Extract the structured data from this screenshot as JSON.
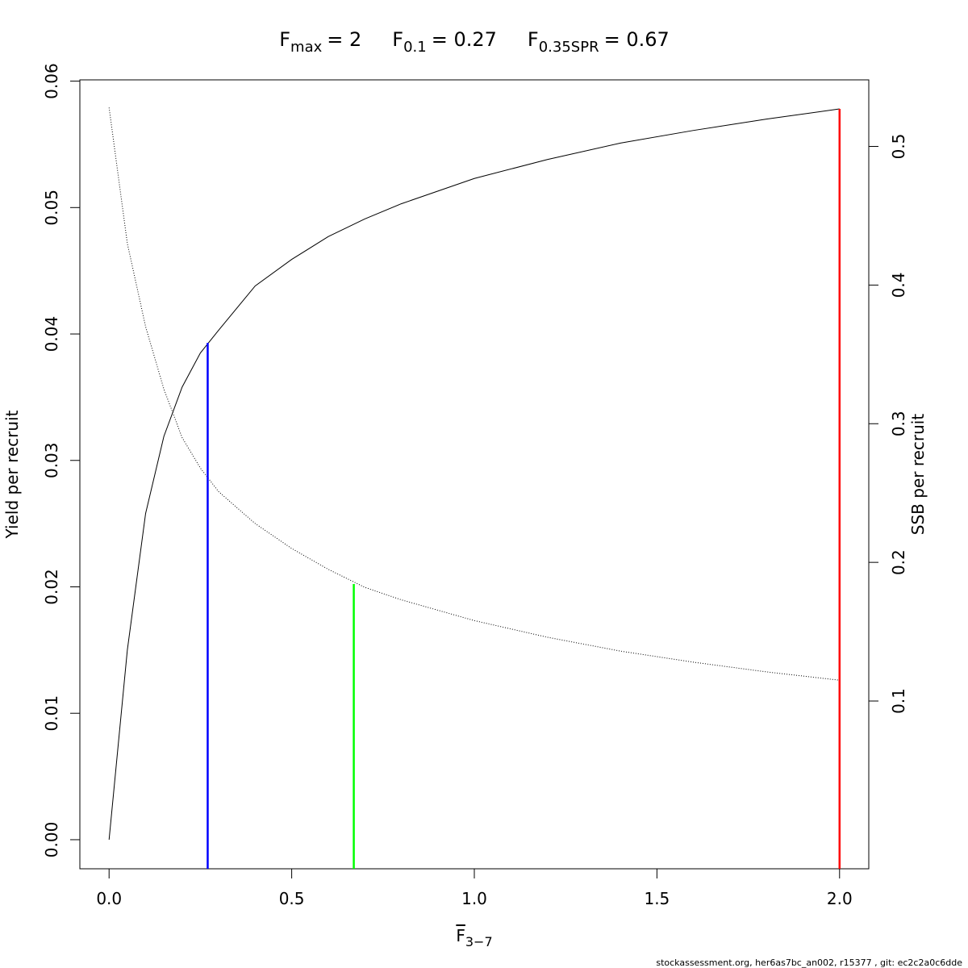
{
  "chart_data": {
    "type": "line",
    "reference_lines": [
      {
        "name": "F",
        "subscript": "max",
        "label": "= 2",
        "x": 2,
        "y": 0.0578,
        "axis": "y",
        "color": "#ff0000"
      },
      {
        "name": "F",
        "subscript": "0.1",
        "label": "= 0.27",
        "x": 0.27,
        "y": 0.0393,
        "axis": "y",
        "color": "#0000ff"
      },
      {
        "name": "F",
        "subscript": "0.35SPR",
        "label": "= 0.67",
        "x": 0.67,
        "y": 0.1844,
        "axis": "y2",
        "color": "#00ff00"
      }
    ],
    "xlabel": "F",
    "xlabel_subscript": "3−7",
    "ylabel": "Yield per recruit",
    "y2label": "SSB per recruit",
    "footnote": "stockassessment.org, her6as7bc_an002, r15377 , git: ec2c2a0c6dde",
    "x": [
      0,
      0.05,
      0.1,
      0.15,
      0.2,
      0.25,
      0.3,
      0.4,
      0.5,
      0.6,
      0.7,
      0.8,
      1.0,
      1.2,
      1.4,
      1.6,
      1.8,
      2.0
    ],
    "series": [
      {
        "color": "#000000",
        "linestyle": "solid",
        "axis": "y",
        "values": [
          0,
          0.015,
          0.0258,
          0.0319,
          0.0358,
          0.0385,
          0.0403,
          0.0438,
          0.0459,
          0.0477,
          0.0491,
          0.0503,
          0.0523,
          0.0538,
          0.0551,
          0.0561,
          0.057,
          0.0578
        ]
      },
      {
        "color": "#000000",
        "linestyle": "dotted",
        "axis": "y2",
        "values": [
          0.528,
          0.43,
          0.37,
          0.325,
          0.29,
          0.268,
          0.251,
          0.228,
          0.21,
          0.195,
          0.182,
          0.173,
          0.158,
          0.146,
          0.136,
          0.128,
          0.121,
          0.115
        ]
      }
    ],
    "xlim": [
      -0.08,
      2.08
    ],
    "xticks": [
      {
        "value": 0,
        "label": "0.0"
      },
      {
        "value": 0.5,
        "label": "0.5"
      },
      {
        "value": 1,
        "label": "1.0"
      },
      {
        "value": 1.5,
        "label": "1.5"
      },
      {
        "value": 2,
        "label": "2.0"
      }
    ],
    "ylim": [
      -0.0023,
      0.0601
    ],
    "yticks": [
      {
        "value": 0,
        "label": "0.00"
      },
      {
        "value": 0.01,
        "label": "0.01"
      },
      {
        "value": 0.02,
        "label": "0.02"
      },
      {
        "value": 0.03,
        "label": "0.03"
      },
      {
        "value": 0.04,
        "label": "0.04"
      },
      {
        "value": 0.05,
        "label": "0.05"
      },
      {
        "value": 0.06,
        "label": "0.06"
      }
    ],
    "y2lim": [
      -0.021,
      0.548
    ],
    "y2ticks": [
      0.1,
      0.2,
      0.3,
      0.4,
      0.5
    ]
  }
}
